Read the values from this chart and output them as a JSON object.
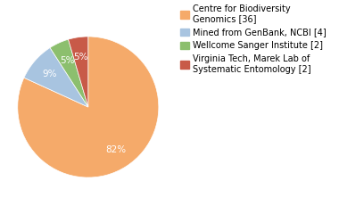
{
  "labels": [
    "Centre for Biodiversity\nGenomics [36]",
    "Mined from GenBank, NCBI [4]",
    "Wellcome Sanger Institute [2]",
    "Virginia Tech, Marek Lab of\nSystematic Entomology [2]"
  ],
  "values": [
    36,
    4,
    2,
    2
  ],
  "colors": [
    "#f5aa6a",
    "#a8c4e0",
    "#8cbf6e",
    "#c85a48"
  ],
  "startangle": 90,
  "background_color": "#ffffff",
  "pct_fontsize": 7.5,
  "legend_fontsize": 7.0
}
